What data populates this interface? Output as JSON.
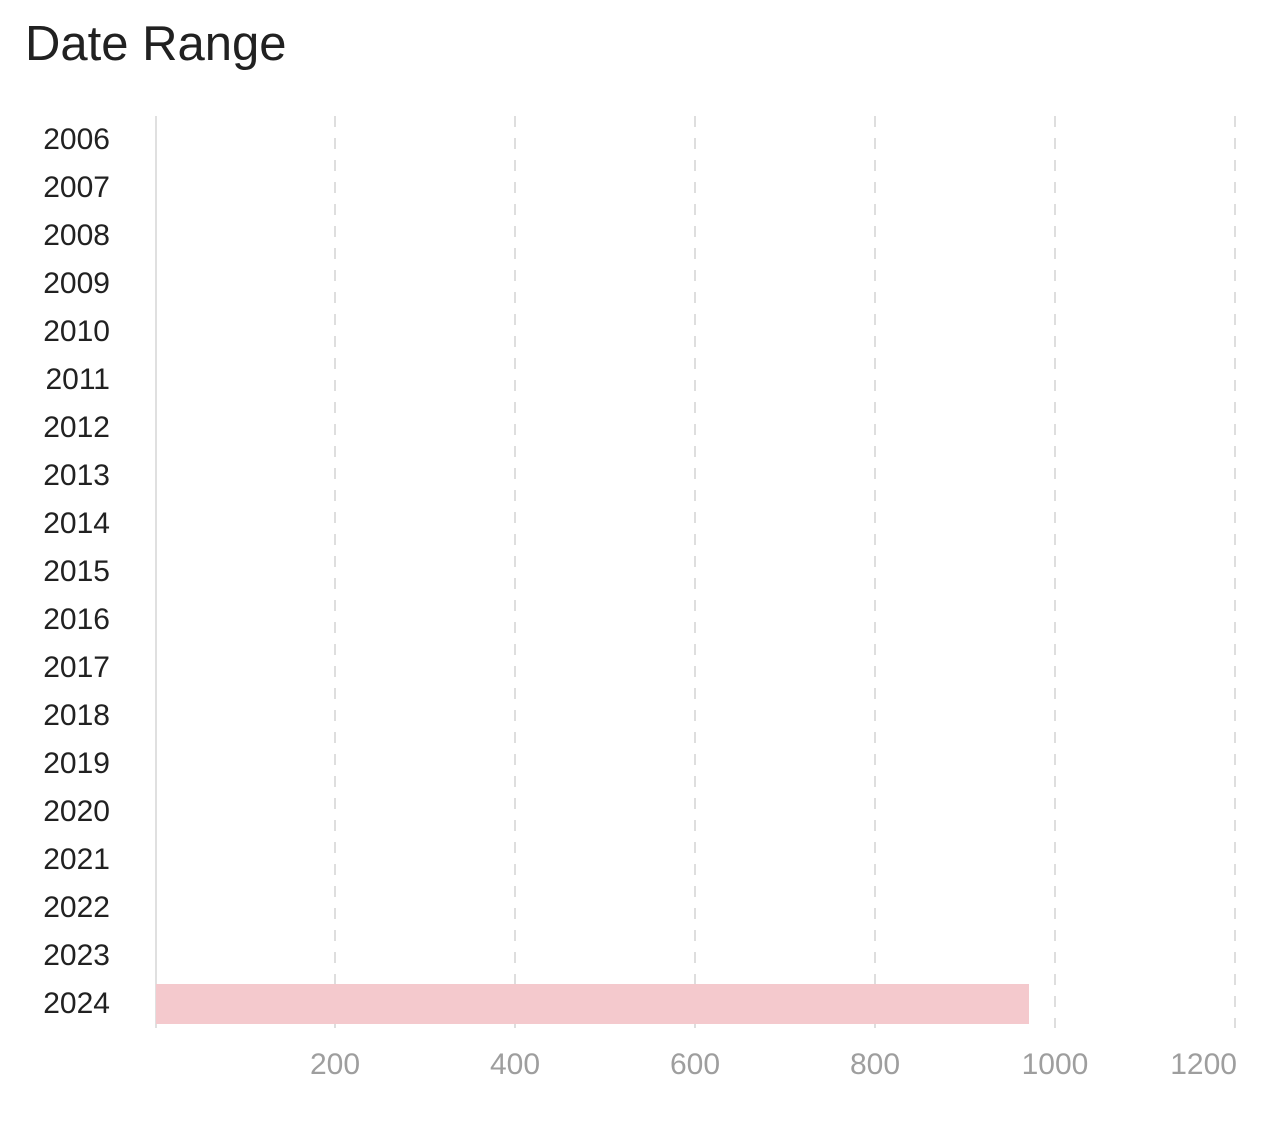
{
  "title": "Date Range",
  "colors": {
    "background": "#ffffff",
    "title_text": "#212121",
    "category_text": "#212121",
    "value_text": "#9e9e9e",
    "gridline": "#dedede",
    "axis_line": "#e0e0e0",
    "bar": "#f4c9cd"
  },
  "chart_data": {
    "type": "bar",
    "orientation": "horizontal",
    "title": "Date Range",
    "categories": [
      "2006",
      "2007",
      "2008",
      "2009",
      "2010",
      "2011",
      "2012",
      "2013",
      "2014",
      "2015",
      "2016",
      "2017",
      "2018",
      "2019",
      "2020",
      "2021",
      "2022",
      "2023",
      "2024"
    ],
    "values": [
      0,
      0,
      0,
      0,
      0,
      0,
      0,
      0,
      0,
      0,
      0,
      0,
      0,
      0,
      0,
      0,
      0,
      0,
      970
    ],
    "x_ticks": [
      "200",
      "400",
      "600",
      "800",
      "1000",
      "1200"
    ],
    "x_tick_values": [
      200,
      400,
      600,
      800,
      1000,
      1200
    ],
    "xlim": [
      0,
      1210
    ],
    "xlabel": "",
    "ylabel": "",
    "grid": "vertical-dashed",
    "legend": "none"
  }
}
